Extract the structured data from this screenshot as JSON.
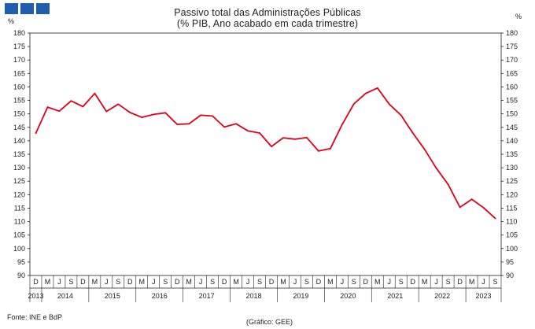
{
  "header": {
    "logo_colors": [
      "#1f5fae",
      "#1f5fae",
      "#1f5fae"
    ]
  },
  "footer": {
    "source": "Fonte: INE e BdP",
    "credit": "(Gráfico: GEE)"
  },
  "chart_data": {
    "type": "line",
    "title": "Passivo total das Administrações Públicas",
    "subtitle": "(% PIB, Ano acabado em cada trimestre)",
    "ylabel_left": "%",
    "ylabel_right": "%",
    "ylim": [
      90,
      180
    ],
    "ytick_step": 5,
    "line_color": "#e0001a",
    "quarter_labels": [
      "D",
      "M",
      "J",
      "S",
      "D",
      "M",
      "J",
      "S",
      "D",
      "M",
      "J",
      "S",
      "D",
      "M",
      "J",
      "S",
      "D",
      "M",
      "J",
      "S",
      "D",
      "M",
      "J",
      "S",
      "D",
      "M",
      "J",
      "S",
      "D",
      "M",
      "J",
      "S",
      "D",
      "M",
      "J",
      "S",
      "D",
      "M",
      "J",
      "S"
    ],
    "year_labels": [
      {
        "year": "2013",
        "start": 0,
        "end": 0
      },
      {
        "year": "2014",
        "start": 1,
        "end": 4
      },
      {
        "year": "2015",
        "start": 5,
        "end": 8
      },
      {
        "year": "2016",
        "start": 9,
        "end": 12
      },
      {
        "year": "2017",
        "start": 13,
        "end": 16
      },
      {
        "year": "2018",
        "start": 17,
        "end": 20
      },
      {
        "year": "2019",
        "start": 21,
        "end": 24
      },
      {
        "year": "2020",
        "start": 25,
        "end": 28
      },
      {
        "year": "2021",
        "start": 29,
        "end": 32
      },
      {
        "year": "2022",
        "start": 33,
        "end": 36
      },
      {
        "year": "2023",
        "start": 37,
        "end": 39
      }
    ],
    "series": [
      {
        "name": "Passivo total",
        "values": [
          142.8,
          152.5,
          151.0,
          154.8,
          152.7,
          157.6,
          150.9,
          153.6,
          150.5,
          148.7,
          149.8,
          150.4,
          146.1,
          146.3,
          149.5,
          149.2,
          145.1,
          146.3,
          143.7,
          142.9,
          137.9,
          141.1,
          140.6,
          141.2,
          136.2,
          137.1,
          146.0,
          153.7,
          157.6,
          159.6,
          153.6,
          149.5,
          142.9,
          136.8,
          129.8,
          123.8,
          115.3,
          118.3,
          115.2,
          111.2
        ]
      }
    ]
  }
}
